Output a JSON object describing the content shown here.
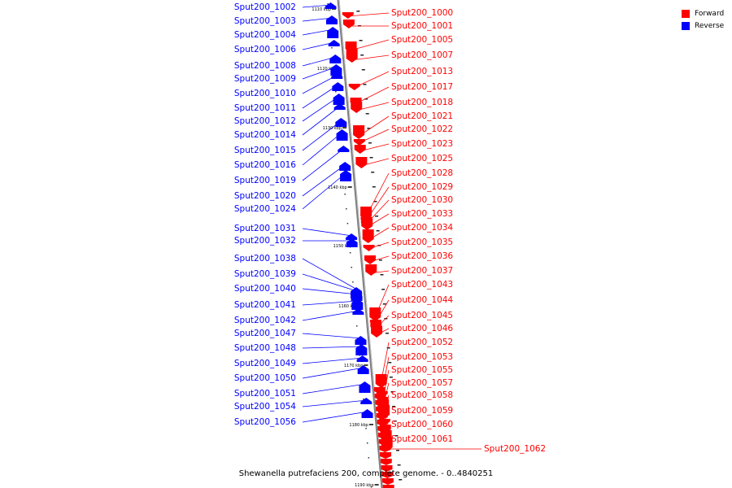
{
  "caption": "Shewanella putrefaciens 200, complete genome. - 0..4840251",
  "legend": [
    {
      "label": "Forward",
      "color": "#ff0000"
    },
    {
      "label": "Reverse",
      "color": "#0000ff"
    }
  ],
  "colors": {
    "forward": "#ff0000",
    "reverse": "#0000ff",
    "backbone": "#808080"
  },
  "kbp_marks": [
    "1110 kbp",
    "1120 kbp",
    "1130 kbp",
    "1140 kbp",
    "1150 kbp",
    "1160 kbp",
    "1170 kbp",
    "1180 kbp",
    "1190 kbp"
  ],
  "reverse_genes": [
    "Sput200_1002",
    "Sput200_1003",
    "Sput200_1004",
    "Sput200_1006",
    "Sput200_1008",
    "Sput200_1009",
    "Sput200_1010",
    "Sput200_1011",
    "Sput200_1012",
    "Sput200_1014",
    "Sput200_1015",
    "Sput200_1016",
    "Sput200_1019",
    "Sput200_1020",
    "Sput200_1024",
    "Sput200_1031",
    "Sput200_1032",
    "Sput200_1038",
    "Sput200_1039",
    "Sput200_1040",
    "Sput200_1041",
    "Sput200_1042",
    "Sput200_1047",
    "Sput200_1048",
    "Sput200_1049",
    "Sput200_1050",
    "Sput200_1051",
    "Sput200_1054",
    "Sput200_1056"
  ],
  "forward_genes": [
    "Sput200_1000",
    "Sput200_1001",
    "Sput200_1005",
    "Sput200_1007",
    "Sput200_1013",
    "Sput200_1017",
    "Sput200_1018",
    "Sput200_1021",
    "Sput200_1022",
    "Sput200_1023",
    "Sput200_1025",
    "Sput200_1028",
    "Sput200_1029",
    "Sput200_1030",
    "Sput200_1033",
    "Sput200_1034",
    "Sput200_1035",
    "Sput200_1036",
    "Sput200_1037",
    "Sput200_1043",
    "Sput200_1044",
    "Sput200_1045",
    "Sput200_1046",
    "Sput200_1052",
    "Sput200_1053",
    "Sput200_1055",
    "Sput200_1057",
    "Sput200_1058",
    "Sput200_1059",
    "Sput200_1060",
    "Sput200_1061",
    "Sput200_1062"
  ]
}
